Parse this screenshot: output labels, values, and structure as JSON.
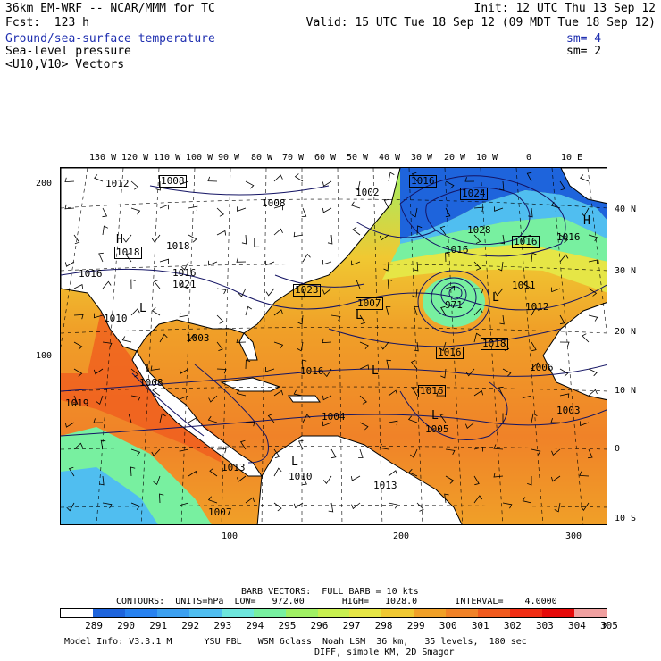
{
  "header": {
    "model": "36km EM-WRF -- NCAR/MMM for TC",
    "init": "Init: 12 UTC Thu 13 Sep 12",
    "fcst": "Fcst:  123 h",
    "valid": "Valid: 15 UTC Tue 18 Sep 12 (09 MDT Tue 18 Sep 12)",
    "fields": [
      {
        "label": "Ground/sea-surface temperature",
        "sm": "sm= 4"
      },
      {
        "label": "Sea-level pressure",
        "sm": "sm= 2"
      },
      {
        "label": "<U10,V10> Vectors",
        "sm": ""
      }
    ]
  },
  "axes": {
    "top_lon": [
      "130 W",
      "120 W",
      "110 W",
      "100 W",
      "90 W",
      "80 W",
      "70 W",
      "60 W",
      "50 W",
      "40 W",
      "30 W",
      "20 W",
      "10 W",
      "0",
      "10 E"
    ],
    "right_lat": [
      "40 N",
      "30 N",
      "20 N",
      "10 N",
      "0",
      "10 S"
    ],
    "left_grid": [
      "200",
      "100"
    ],
    "bottom_grid": [
      "100",
      "200",
      "300"
    ]
  },
  "pressure_labels": [
    "1012",
    "1008",
    "1008",
    "1002",
    "1016",
    "1024",
    "1028",
    "1016",
    "1018",
    "1018",
    "1016",
    "1016",
    "1021",
    "1016",
    "1016",
    "1023",
    "1007",
    "971",
    "1011",
    "1012",
    "1010",
    "1003",
    "1018",
    "1016",
    "1016",
    "1016",
    "1006",
    "1008",
    "1019",
    "1004",
    "1005",
    "1003",
    "1013",
    "1010",
    "1013",
    "1007"
  ],
  "centers": [
    "L",
    "H",
    "L",
    "L",
    "L",
    "H",
    "L",
    "L",
    "L",
    "L"
  ],
  "footer": {
    "barb": "BARB VECTORS:  FULL BARB = 10 kts",
    "contours": "CONTOURS:  UNITS=hPa  LOW=   972.00       HIGH=   1028.0       INTERVAL=    4.0000",
    "colorbar_values": [
      "289",
      "290",
      "291",
      "292",
      "293",
      "294",
      "295",
      "296",
      "297",
      "298",
      "299",
      "300",
      "301",
      "302",
      "303",
      "304",
      "305"
    ],
    "unit": "K",
    "model_info_1": "Model Info: V3.3.1 M      YSU PBL   WSM 6class  Noah LSM  36 km,   35 levels,  180 sec",
    "model_info_2": "DIFF, simple KM, 2D Smagor"
  },
  "colors": {
    "sst_bins": [
      "#ffffff",
      "#1e64dc",
      "#2882f0",
      "#3ca0f0",
      "#50bef0",
      "#6ee6dc",
      "#78f0a0",
      "#a0f064",
      "#c8f050",
      "#e6e646",
      "#f0c832",
      "#f0a028",
      "#f08228",
      "#f05a1e",
      "#f02d14",
      "#e60a0a",
      "#f0a0a0"
    ]
  }
}
